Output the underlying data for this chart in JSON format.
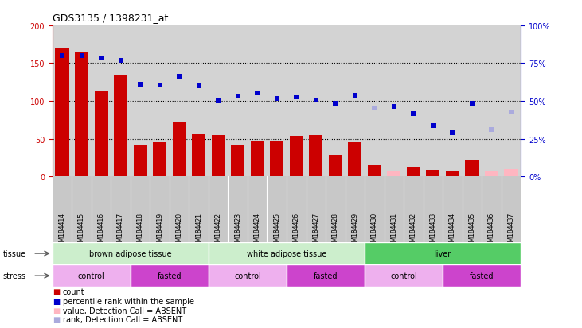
{
  "title": "GDS3135 / 1398231_at",
  "samples": [
    "GSM184414",
    "GSM184415",
    "GSM184416",
    "GSM184417",
    "GSM184418",
    "GSM184419",
    "GSM184420",
    "GSM184421",
    "GSM184422",
    "GSM184423",
    "GSM184424",
    "GSM184425",
    "GSM184426",
    "GSM184427",
    "GSM184428",
    "GSM184429",
    "GSM184430",
    "GSM184431",
    "GSM184432",
    "GSM184433",
    "GSM184434",
    "GSM184435",
    "GSM184436",
    "GSM184437"
  ],
  "count_values": [
    170,
    165,
    112,
    135,
    42,
    45,
    73,
    56,
    55,
    42,
    47,
    47,
    54,
    55,
    28,
    45,
    15,
    null,
    13,
    9,
    8,
    22,
    null,
    null
  ],
  "count_absent": [
    null,
    null,
    null,
    null,
    null,
    null,
    null,
    null,
    null,
    null,
    null,
    null,
    null,
    null,
    null,
    null,
    null,
    7,
    null,
    null,
    null,
    null,
    8,
    10
  ],
  "rank_values": [
    160,
    160,
    157,
    153,
    122,
    121,
    133,
    120,
    100,
    106,
    110,
    103,
    105,
    101,
    97,
    107,
    null,
    93,
    83,
    67,
    58,
    97,
    null,
    null
  ],
  "rank_absent": [
    null,
    null,
    null,
    null,
    null,
    null,
    null,
    null,
    null,
    null,
    null,
    null,
    null,
    null,
    null,
    null,
    90,
    null,
    null,
    null,
    null,
    null,
    62,
    85
  ],
  "tissue_groups": [
    {
      "label": "brown adipose tissue",
      "start": 0,
      "end": 8,
      "color": "#BBEEBB"
    },
    {
      "label": "white adipose tissue",
      "start": 8,
      "end": 16,
      "color": "#BBEEBB"
    },
    {
      "label": "liver",
      "start": 16,
      "end": 24,
      "color": "#44CC66"
    }
  ],
  "stress_groups": [
    {
      "label": "control",
      "start": 0,
      "end": 4,
      "color": "#EEB0EE"
    },
    {
      "label": "fasted",
      "start": 4,
      "end": 8,
      "color": "#CC44CC"
    },
    {
      "label": "control",
      "start": 8,
      "end": 12,
      "color": "#EEB0EE"
    },
    {
      "label": "fasted",
      "start": 12,
      "end": 16,
      "color": "#CC44CC"
    },
    {
      "label": "control",
      "start": 16,
      "end": 20,
      "color": "#EEB0EE"
    },
    {
      "label": "fasted",
      "start": 20,
      "end": 24,
      "color": "#CC44CC"
    }
  ],
  "ylim_left": [
    0,
    200
  ],
  "yticks_left": [
    0,
    50,
    100,
    150,
    200
  ],
  "bar_color": "#CC0000",
  "bar_absent_color": "#FFB6C1",
  "rank_color": "#0000CC",
  "rank_absent_color": "#AAAADD",
  "plot_bg": "#D3D3D3",
  "xaxis_bg": "#C8C8C8",
  "legend_items": [
    {
      "color": "#CC0000",
      "label": "count",
      "shape": "square"
    },
    {
      "color": "#0000CC",
      "label": "percentile rank within the sample",
      "shape": "square"
    },
    {
      "color": "#FFB6C1",
      "label": "value, Detection Call = ABSENT",
      "shape": "square"
    },
    {
      "color": "#AAAADD",
      "label": "rank, Detection Call = ABSENT",
      "shape": "square"
    }
  ]
}
